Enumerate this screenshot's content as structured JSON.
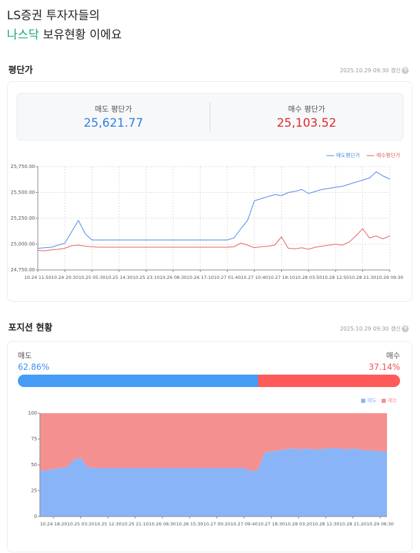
{
  "header": {
    "line1": "LS증권 투자자들의",
    "highlight": "나스닥",
    "rest": " 보유현황 이에요"
  },
  "sections": [
    {
      "title": "평단가",
      "updated": "2025.10.29 09:30 갱신",
      "sell_label": "매도 평단가",
      "sell_value": "25,621.77",
      "buy_label": "매수 평단가",
      "buy_value": "25,103.52"
    },
    {
      "title": "포지션 현황",
      "updated": "2025.10.29 09:30 갱신",
      "sell_label": "매도",
      "sell": {
        "value": 62.86,
        "label": "62.86%"
      },
      "buy_label": "매수",
      "buy": {
        "value": 37.14,
        "label": "37.14%"
      }
    }
  ],
  "chart_data": [
    {
      "type": "line",
      "legend": "top-right",
      "grid": true,
      "categories": [
        "10.24 11:50",
        null,
        null,
        null,
        "10.24 20:30",
        null,
        null,
        null,
        "10.25 05:30",
        null,
        null,
        null,
        "10.25 14:30",
        null,
        null,
        null,
        "10.25 23:10",
        null,
        null,
        null,
        "10.26 08:30",
        null,
        null,
        null,
        "10.26 17:10",
        null,
        null,
        null,
        "10.27 01:40",
        null,
        null,
        null,
        "10.27 10:40",
        null,
        null,
        null,
        "10.27 19:10",
        null,
        null,
        null,
        "10.28 03:50",
        null,
        null,
        null,
        "10.28 12:50",
        null,
        null,
        null,
        "10.28 21:30",
        null,
        null,
        null,
        "10.29 09:30"
      ],
      "ylim": [
        24750,
        25750
      ],
      "yticks": [
        {
          "value": 24750,
          "label": "24,750.00"
        },
        {
          "value": 25000,
          "label": "25,000.00"
        },
        {
          "value": 25250,
          "label": "25,250.00"
        },
        {
          "value": 25500,
          "label": "25,500.00"
        },
        {
          "value": 25750,
          "label": "25,750.00"
        }
      ],
      "series": [
        {
          "name": "매도평단가",
          "color": "#4a86e8",
          "values": [
            24960,
            24965,
            24970,
            24990,
            25010,
            25120,
            25230,
            25100,
            25040,
            25040,
            25040,
            25040,
            25040,
            25040,
            25040,
            25040,
            25040,
            25040,
            25040,
            25040,
            25040,
            25040,
            25040,
            25040,
            25040,
            25040,
            25040,
            25040,
            25040,
            25060,
            25150,
            25230,
            25420,
            25440,
            25460,
            25480,
            25470,
            25500,
            25510,
            25530,
            25490,
            25510,
            25530,
            25540,
            25550,
            25560,
            25580,
            25600,
            25620,
            25640,
            25700,
            25660,
            25630
          ]
        },
        {
          "name": "매수평단가",
          "color": "#e85a5a",
          "values": [
            24940,
            24935,
            24945,
            24950,
            24960,
            24985,
            24990,
            24980,
            24975,
            24970,
            24970,
            24970,
            24970,
            24970,
            24970,
            24970,
            24970,
            24970,
            24970,
            24970,
            24970,
            24970,
            24970,
            24970,
            24970,
            24970,
            24970,
            24970,
            24970,
            24975,
            25010,
            24990,
            24965,
            24975,
            24980,
            24990,
            25070,
            24960,
            24955,
            24965,
            24950,
            24970,
            24980,
            24990,
            25000,
            24990,
            25020,
            25080,
            25150,
            25060,
            25080,
            25050,
            25080
          ]
        }
      ]
    },
    {
      "type": "area",
      "stacked": true,
      "legend": "top-right",
      "categories": [
        null,
        null,
        "10.24 18:20",
        null,
        null,
        null,
        "10.25 03:20",
        null,
        null,
        null,
        "10.25 12:30",
        null,
        null,
        null,
        "10.25 21:10",
        null,
        null,
        null,
        "10.26 06:30",
        null,
        null,
        null,
        "10.26 15:30",
        null,
        null,
        null,
        "10.27 00:20",
        null,
        null,
        null,
        "10.27 09:40",
        null,
        null,
        null,
        "10.27 18:30",
        null,
        null,
        null,
        "10.28 03:20",
        null,
        null,
        null,
        "10.28 12:30",
        null,
        null,
        null,
        "10.28 21:20",
        null,
        null,
        null,
        "10.29 06:30",
        null
      ],
      "ylim": [
        0,
        100
      ],
      "yticks": [
        0,
        25,
        50,
        75,
        100
      ],
      "series": [
        {
          "name": "매도",
          "color": "#8ab4f8",
          "values": [
            44,
            45,
            46,
            47,
            48,
            55,
            57,
            48,
            47,
            47,
            47,
            47,
            47,
            47,
            47,
            47,
            47,
            47,
            47,
            47,
            47,
            47,
            47,
            47,
            47,
            47,
            47,
            47,
            47,
            47,
            47,
            44,
            45,
            62,
            63,
            64,
            65,
            66,
            65,
            66,
            65,
            65,
            66,
            66,
            66,
            65,
            66,
            65,
            64,
            64,
            63,
            63
          ]
        },
        {
          "name": "매수",
          "color": "#f49090",
          "values": [
            56,
            55,
            54,
            53,
            52,
            45,
            43,
            52,
            53,
            53,
            53,
            53,
            53,
            53,
            53,
            53,
            53,
            53,
            53,
            53,
            53,
            53,
            53,
            53,
            53,
            53,
            53,
            53,
            53,
            53,
            53,
            56,
            55,
            38,
            37,
            36,
            35,
            34,
            35,
            34,
            35,
            35,
            34,
            34,
            34,
            35,
            34,
            35,
            36,
            36,
            37,
            37
          ]
        }
      ]
    }
  ]
}
